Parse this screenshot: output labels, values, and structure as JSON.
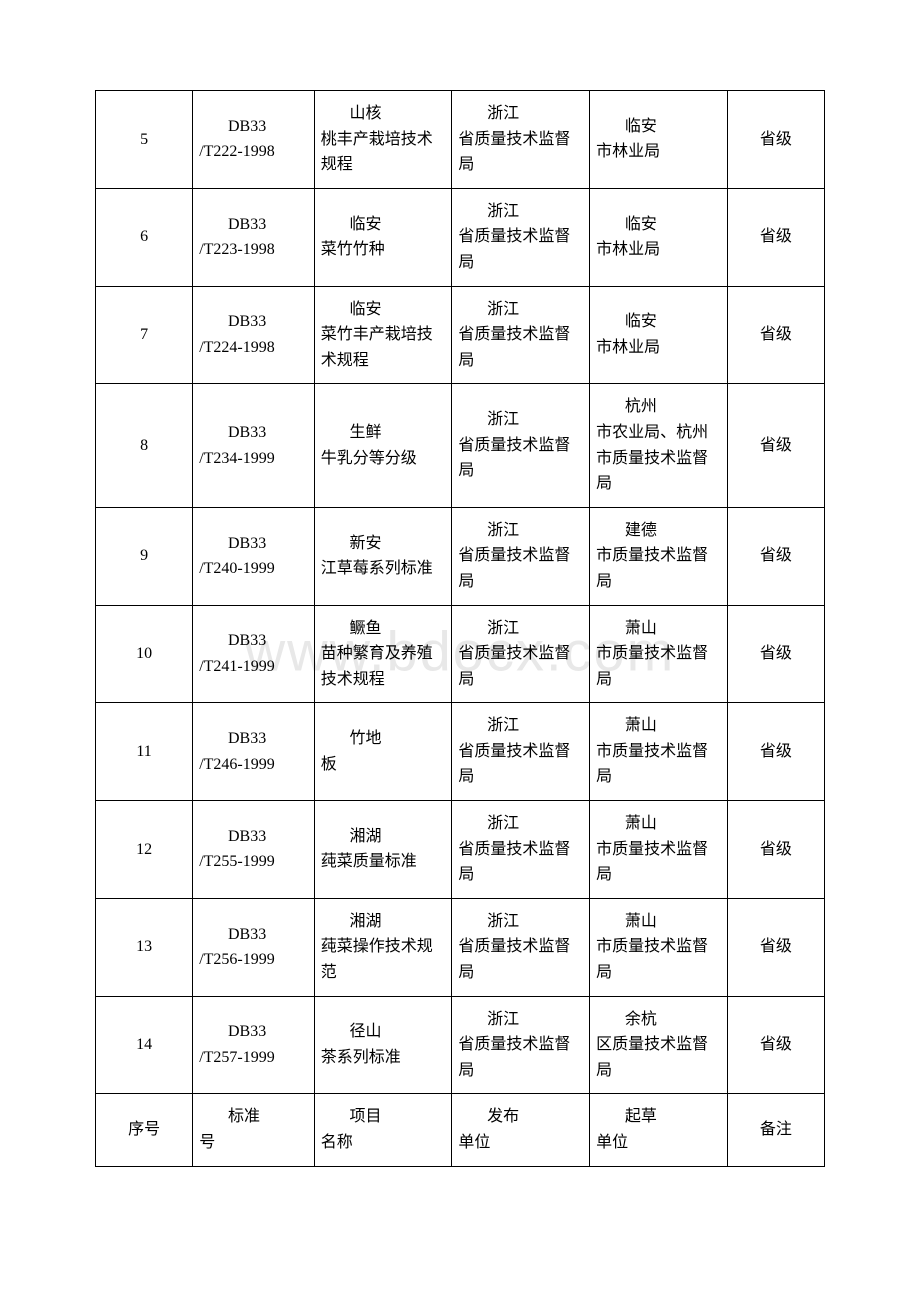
{
  "watermark_text": "www.bdocx.com",
  "rows": [
    {
      "seq": "5",
      "std_first": "DB33",
      "std_rest": "/T222-1998",
      "name_first": "山核",
      "name_rest": "桃丰产栽培技术规程",
      "pub_first": "浙江",
      "pub_rest": "省质量技术监督局",
      "draft_first": "临安",
      "draft_rest": "市林业局",
      "note": "省级"
    },
    {
      "seq": "6",
      "std_first": "DB33",
      "std_rest": "/T223-1998",
      "name_first": "临安",
      "name_rest": "菜竹竹种",
      "pub_first": "浙江",
      "pub_rest": "省质量技术监督局",
      "draft_first": "临安",
      "draft_rest": "市林业局",
      "note": "省级"
    },
    {
      "seq": "7",
      "std_first": "DB33",
      "std_rest": "/T224-1998",
      "name_first": "临安",
      "name_rest": "菜竹丰产栽培技术规程",
      "pub_first": "浙江",
      "pub_rest": "省质量技术监督局",
      "draft_first": "临安",
      "draft_rest": "市林业局",
      "note": "省级"
    },
    {
      "seq": "8",
      "std_first": "DB33",
      "std_rest": "/T234-1999",
      "name_first": "生鲜",
      "name_rest": "牛乳分等分级",
      "pub_first": "浙江",
      "pub_rest": "省质量技术监督局",
      "draft_first": "杭州",
      "draft_rest": "市农业局、杭州市质量技术监督局",
      "note": "省级"
    },
    {
      "seq": "9",
      "std_first": "DB33",
      "std_rest": "/T240-1999",
      "name_first": "新安",
      "name_rest": "江草莓系列标准",
      "pub_first": "浙江",
      "pub_rest": "省质量技术监督局",
      "draft_first": "建德",
      "draft_rest": "市质量技术监督局",
      "note": "省级"
    },
    {
      "seq": "10",
      "std_first": "DB33",
      "std_rest": "/T241-1999",
      "name_first": "鳜鱼",
      "name_rest": "苗种繁育及养殖技术规程",
      "pub_first": "浙江",
      "pub_rest": "省质量技术监督局",
      "draft_first": "萧山",
      "draft_rest": "市质量技术监督局",
      "note": "省级"
    },
    {
      "seq": "11",
      "std_first": "DB33",
      "std_rest": "/T246-1999",
      "name_first": "竹地",
      "name_rest": "板",
      "pub_first": "浙江",
      "pub_rest": "省质量技术监督局",
      "draft_first": "萧山",
      "draft_rest": "市质量技术监督局",
      "note": "省级"
    },
    {
      "seq": "12",
      "std_first": "DB33",
      "std_rest": "/T255-1999",
      "name_first": "湘湖",
      "name_rest": "莼菜质量标准",
      "pub_first": "浙江",
      "pub_rest": "省质量技术监督局",
      "draft_first": "萧山",
      "draft_rest": "市质量技术监督局",
      "note": "省级"
    },
    {
      "seq": "13",
      "std_first": "DB33",
      "std_rest": "/T256-1999",
      "name_first": "湘湖",
      "name_rest": "莼菜操作技术规范",
      "pub_first": "浙江",
      "pub_rest": "省质量技术监督局",
      "draft_first": "萧山",
      "draft_rest": "市质量技术监督局",
      "note": "省级"
    },
    {
      "seq": "14",
      "std_first": "DB33",
      "std_rest": "/T257-1999",
      "name_first": "径山",
      "name_rest": "茶系列标准",
      "pub_first": "浙江",
      "pub_rest": "省质量技术监督局",
      "draft_first": "余杭",
      "draft_rest": "区质量技术监督局",
      "note": "省级"
    }
  ],
  "footer": {
    "seq": "序号",
    "std_first": "标准",
    "std_rest": "号",
    "name_first": "项目",
    "name_rest": "名称",
    "pub_first": "发布",
    "pub_rest": "单位",
    "draft_first": "起草",
    "draft_rest": "单位",
    "note": "备注"
  }
}
